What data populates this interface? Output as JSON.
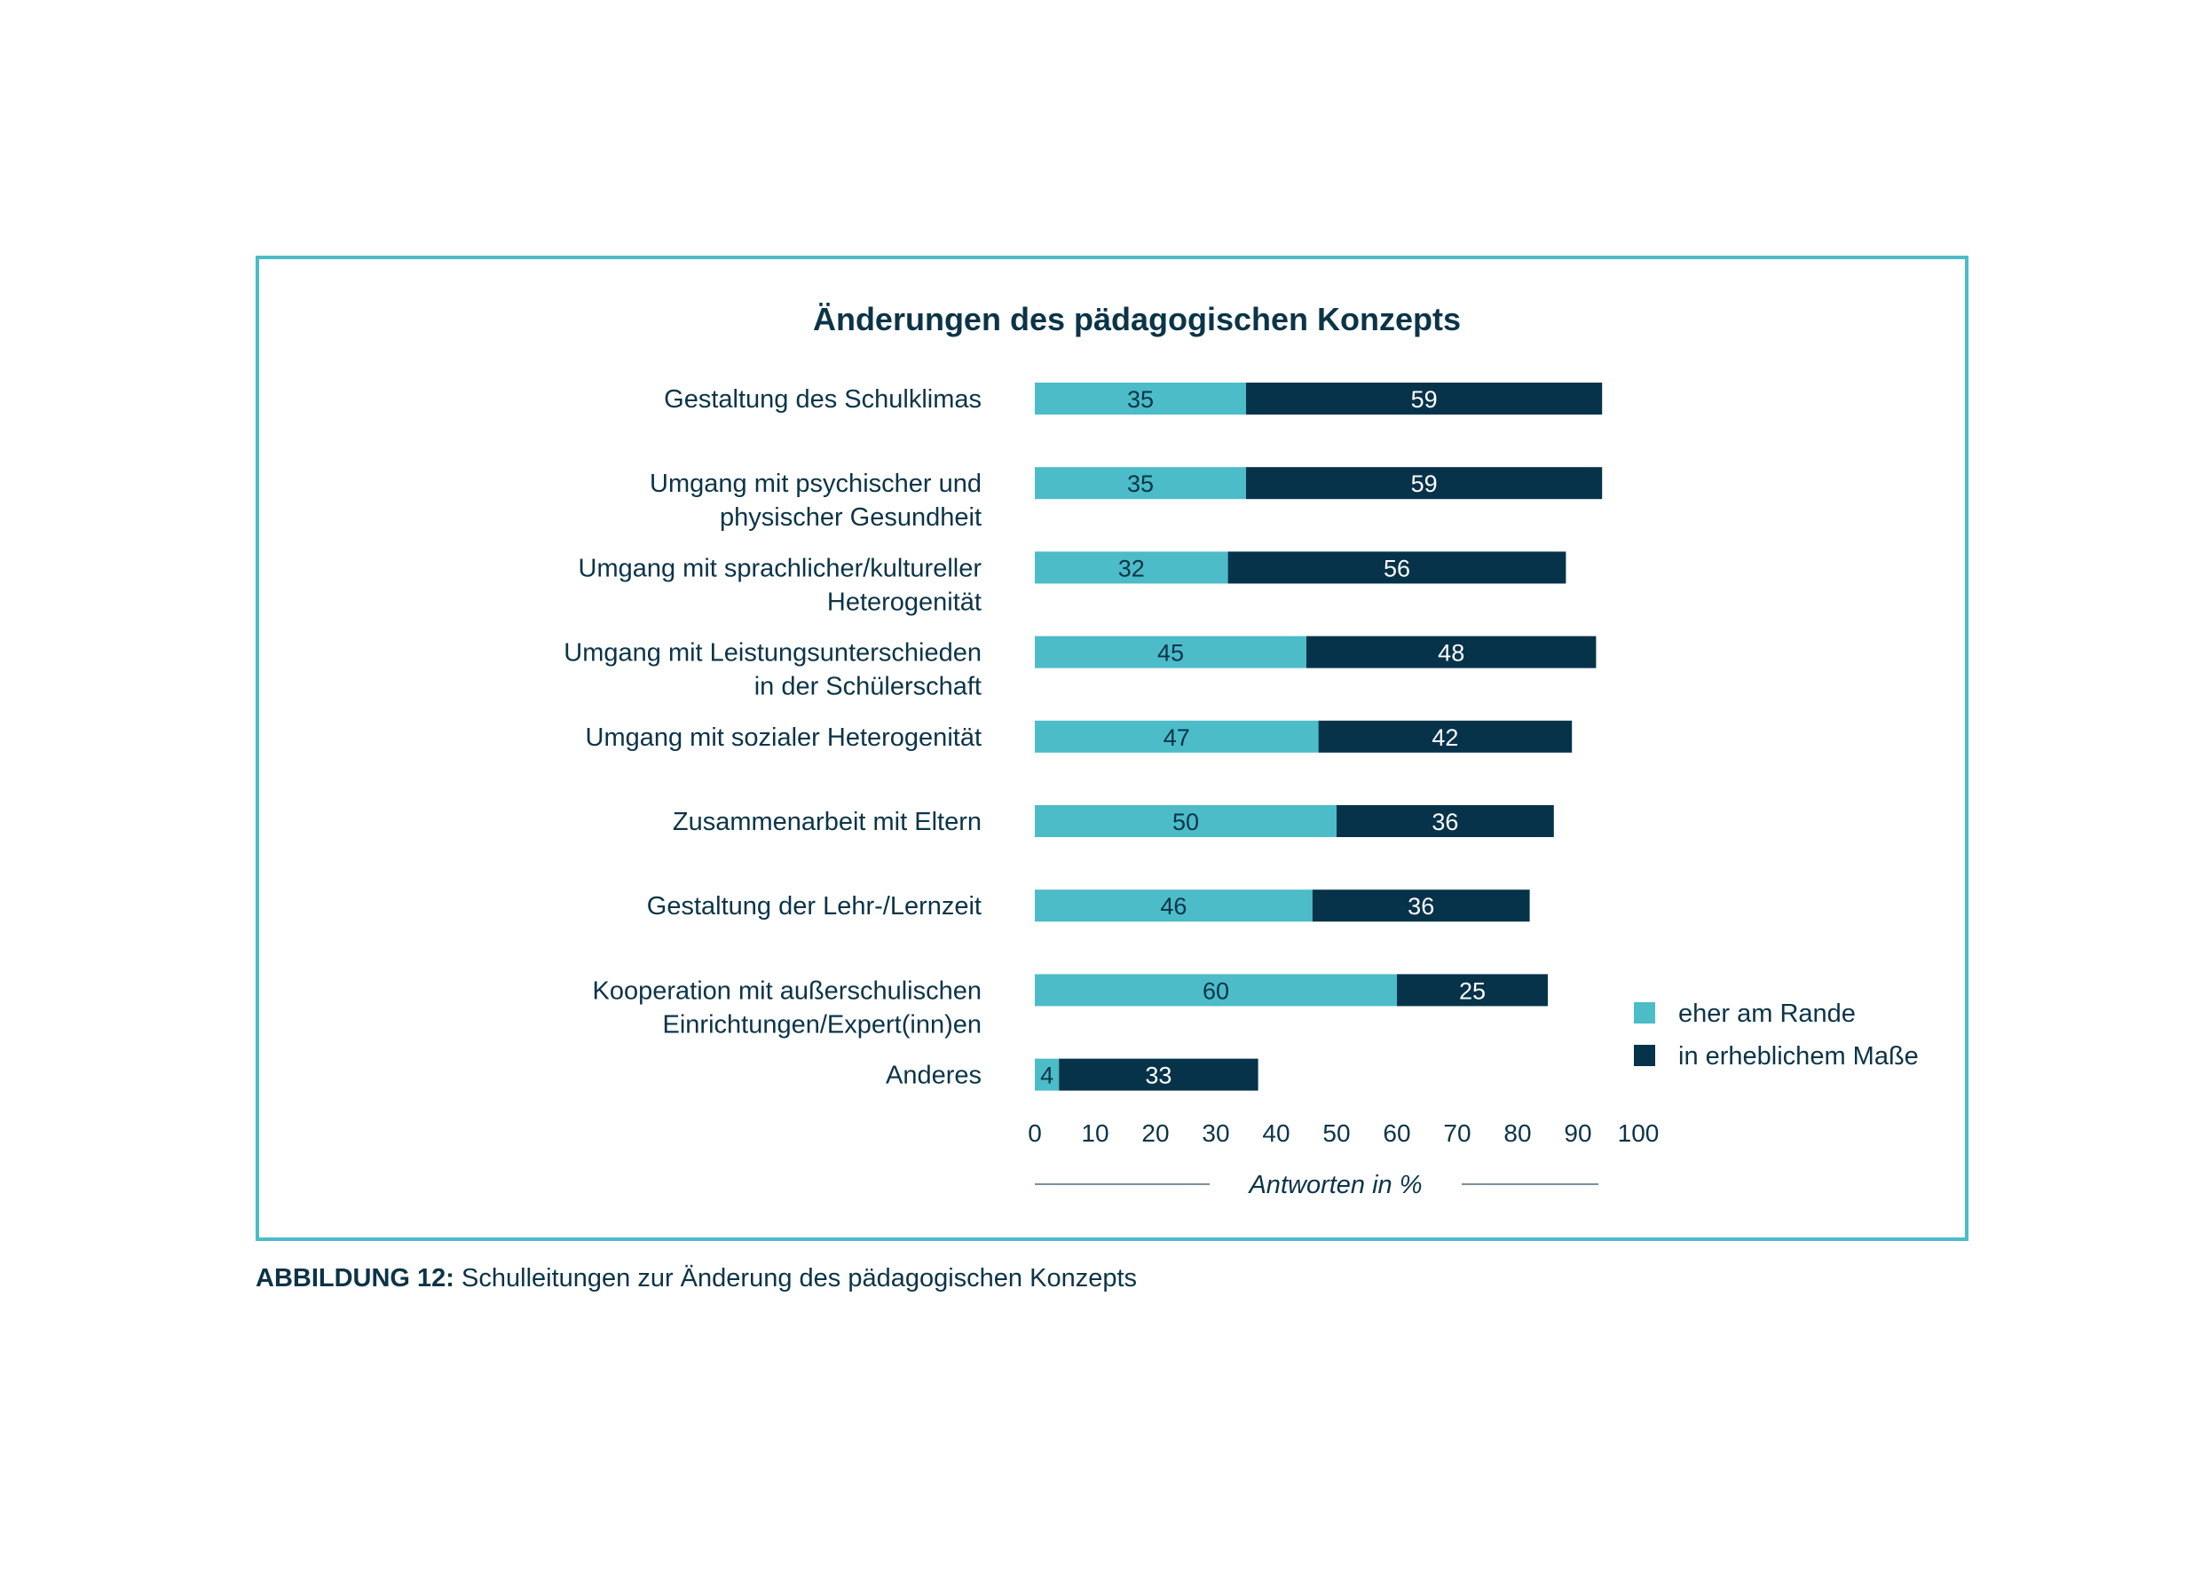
{
  "caption": {
    "label": "ABBILDUNG 12:",
    "text": "Schulleitungen zur Änderung des pädagogischen Konzepts"
  },
  "colors": {
    "frame": "#4bbcc8",
    "series_light": "#4bbcc8",
    "series_dark": "#06334a",
    "text": "#0b3447"
  },
  "chart_data": {
    "type": "bar",
    "orientation": "horizontal",
    "stacked": true,
    "title": "Änderungen des pädagogischen Konzepts",
    "xlabel": "Antworten in %",
    "xlim": [
      0,
      100
    ],
    "xticks": [
      0,
      10,
      20,
      30,
      40,
      50,
      60,
      70,
      80,
      90,
      100
    ],
    "grid": false,
    "legend_position": "right",
    "categories": [
      [
        "Gestaltung des Schulklimas"
      ],
      [
        "Umgang mit psychischer und",
        "physischer Gesundheit"
      ],
      [
        "Umgang mit sprachlicher/kultureller",
        "Heterogenität"
      ],
      [
        "Umgang mit Leistungsunterschieden",
        "in der Schülerschaft"
      ],
      [
        "Umgang mit sozialer Heterogenität"
      ],
      [
        "Zusammenarbeit mit Eltern"
      ],
      [
        "Gestaltung der Lehr-/Lernzeit"
      ],
      [
        "Kooperation mit außerschulischen",
        "Einrichtungen/Expert(inn)en"
      ],
      [
        "Anderes"
      ]
    ],
    "series": [
      {
        "name": "eher am Rande",
        "color": "#4bbcc8",
        "values": [
          35,
          35,
          32,
          45,
          47,
          50,
          46,
          60,
          4
        ]
      },
      {
        "name": "in erheblichem Maße",
        "color": "#06334a",
        "values": [
          59,
          59,
          56,
          48,
          42,
          36,
          36,
          25,
          33
        ]
      }
    ]
  }
}
